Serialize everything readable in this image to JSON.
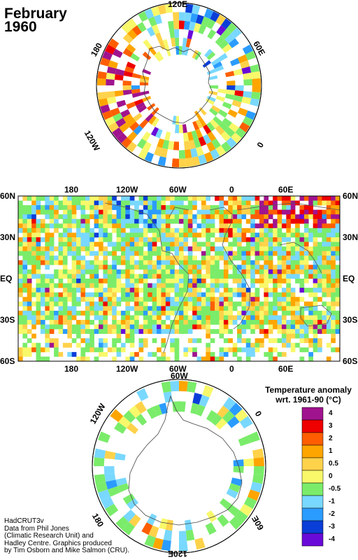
{
  "title": {
    "line1": "February",
    "line2": "1960"
  },
  "north_polar": {
    "labels": {
      "top": "120E",
      "left": "180",
      "right": "60E",
      "bottom_left": "120W",
      "bottom_right": "0"
    }
  },
  "world_map": {
    "top_lon": [
      "180",
      "120W",
      "60W",
      "0",
      "60E"
    ],
    "bottom_lon": [
      "180",
      "120W",
      "60W",
      "0",
      "60E"
    ],
    "left_lat": [
      "60N",
      "30N",
      "EQ",
      "30S",
      "60S"
    ],
    "right_lat": [
      "60N",
      "30N",
      "EQ",
      "30S",
      "60S"
    ]
  },
  "south_polar": {
    "labels": {
      "top": "60W",
      "left": "120W",
      "right": "0",
      "bottom_left": "180",
      "bottom_right": "60E",
      "bottom": "120E"
    }
  },
  "legend": {
    "title_line1": "Temperature anomaly",
    "title_line2": "wrt. 1961-90  (°C)",
    "items": [
      {
        "label": "4",
        "color": "#a0138e"
      },
      {
        "label": "3",
        "color": "#ee0000"
      },
      {
        "label": "2",
        "color": "#ff5e00"
      },
      {
        "label": "1",
        "color": "#ffa500"
      },
      {
        "label": "0.5",
        "color": "#ffd24a"
      },
      {
        "label": "0",
        "color": "#f8f86a"
      },
      {
        "label": "-0.5",
        "color": "#7aec6a"
      },
      {
        "label": "-1",
        "color": "#79d8ff"
      },
      {
        "label": "-2",
        "color": "#2b9cff"
      },
      {
        "label": "-3",
        "color": "#0a3ed8"
      },
      {
        "label": "-4",
        "color": "#6a0ad8"
      }
    ]
  },
  "credits": [
    "HadCRUT3v",
    "Data from Phil Jones",
    "(Climatic Research Unit) and",
    "Hadley Centre.  Graphics produced",
    "by Tim Osborn and Mike Salmon (CRU)."
  ]
}
